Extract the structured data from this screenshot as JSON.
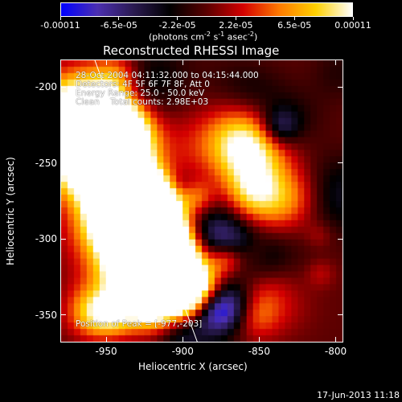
{
  "colorbar": {
    "colors": [
      "#0000ff",
      "#4b2fb0",
      "#2a1a50",
      "#000000",
      "#5a0000",
      "#d40000",
      "#ff7a00",
      "#ffd000",
      "#ffffff"
    ],
    "ticks": [
      "-0.00011",
      "-6.5e-05",
      "-2.2e-05",
      "2.2e-05",
      "6.5e-05",
      "0.00011"
    ],
    "units": "(photons cm",
    "units_exp1": "-2",
    "units_mid": " s",
    "units_exp2": "-1",
    "units_end": " asec",
    "units_exp3": "-2",
    "units_close": ")"
  },
  "title": "Reconstructed RHESSI Image",
  "info": {
    "time": "28-Oct-2004 04:11:32.000 to 04:15:44.000",
    "detectors": "Detectors: 4F 5F 6F 7F 8F, Att 0",
    "energy": "Energy Range: 25.0 - 50.0 keV",
    "method": "Clean    Total counts: 2.98E+03",
    "peak": "Position of Peak = [-977,-203]"
  },
  "xaxis": {
    "label": "Heliocentric X (arcsec)",
    "ticks": [
      "-950",
      "-900",
      "-850",
      "-800"
    ],
    "range": [
      -980,
      -795
    ]
  },
  "yaxis": {
    "label": "Heliocentric Y (arcsec)",
    "ticks": [
      "-200",
      "-250",
      "-300",
      "-350"
    ],
    "range": [
      -368,
      -182
    ]
  },
  "footer": {
    "date": "17-Jun-2013 11:18"
  }
}
